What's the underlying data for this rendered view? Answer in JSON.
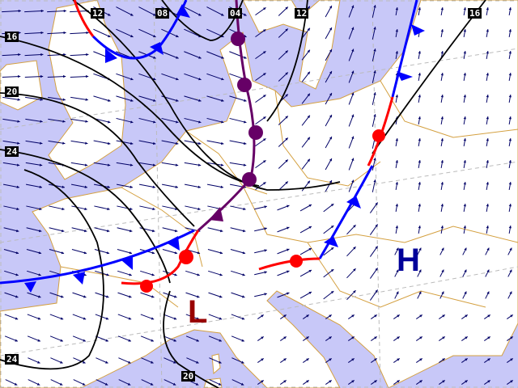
{
  "colors": {
    "sea": "#c8c8f8",
    "land": "#ffffff",
    "border": "#d4a040",
    "isobar": "#000000",
    "cold_front": "#0000ff",
    "warm_front": "#ff0000",
    "occluded_front": "#660066",
    "wind": "#000066",
    "low": "#990000",
    "high": "#000099"
  },
  "pressure_centers": [
    {
      "type": "low",
      "label": "L"
    },
    {
      "type": "high",
      "label": "H"
    }
  ],
  "isobar_labels": [
    "12",
    "08",
    "04",
    "12",
    "16",
    "16",
    "20",
    "24",
    "24",
    "20"
  ],
  "front_types": [
    "cold",
    "warm",
    "occluded"
  ],
  "wind_icon": "wind-arrow-icon"
}
